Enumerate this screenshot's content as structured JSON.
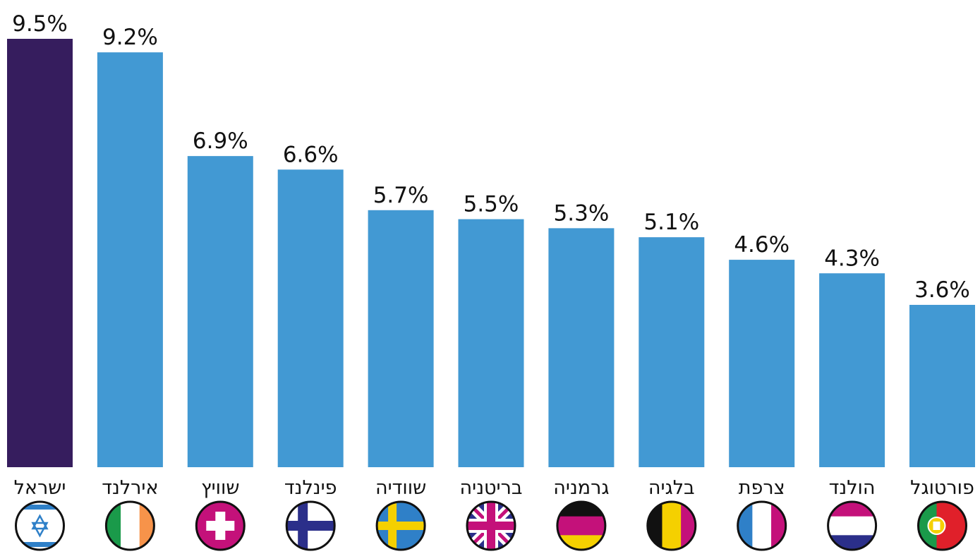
{
  "chart_data": {
    "type": "bar",
    "categories": [
      "ישראל",
      "אירלנד",
      "שוויץ",
      "פינלנד",
      "שוודיה",
      "בריטניה",
      "גרמניה",
      "בלגיה",
      "צרפת",
      "הולנד",
      "פורטוגל"
    ],
    "values": [
      9.5,
      9.2,
      6.9,
      6.6,
      5.7,
      5.5,
      5.3,
      5.1,
      4.6,
      4.3,
      3.6
    ],
    "value_labels": [
      "9.5%",
      "9.2%",
      "6.9%",
      "6.6%",
      "5.7%",
      "5.5%",
      "5.3%",
      "5.1%",
      "4.6%",
      "4.3%",
      "3.6%"
    ],
    "colors": [
      "#361d5e",
      "#4299d3",
      "#4299d3",
      "#4299d3",
      "#4299d3",
      "#4299d3",
      "#4299d3",
      "#4299d3",
      "#4299d3",
      "#4299d3",
      "#4299d3"
    ]
  }
}
